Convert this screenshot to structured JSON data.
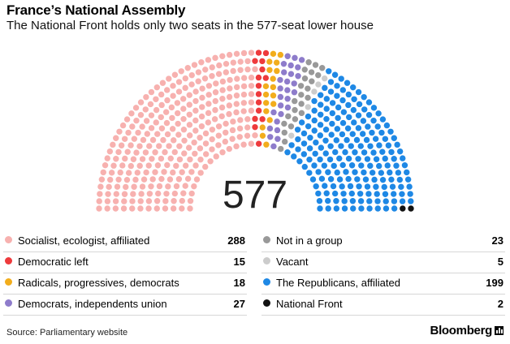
{
  "header": {
    "title": "France’s National Assembly",
    "subtitle": "The National Front holds only two seats in the 577-seat lower house"
  },
  "chart_data": {
    "type": "parliament",
    "total": 577,
    "total_label": "577",
    "groups": [
      {
        "name": "Socialist, ecologist, affiliated",
        "seats": 288,
        "color": "#f7b1af"
      },
      {
        "name": "Democratic left",
        "seats": 15,
        "color": "#ee3a3c"
      },
      {
        "name": "Radicals, progressives, democrats",
        "seats": 18,
        "color": "#f2ad1c"
      },
      {
        "name": "Democrats, independents union",
        "seats": 27,
        "color": "#8e7ccb"
      },
      {
        "name": "Not in a group",
        "seats": 23,
        "color": "#999999"
      },
      {
        "name": "Vacant",
        "seats": 5,
        "color": "#cccccc"
      },
      {
        "name": "The Republicans, affiliated",
        "seats": 199,
        "color": "#1e88e5"
      },
      {
        "name": "National Front",
        "seats": 2,
        "color": "#111111"
      }
    ]
  },
  "legend": [
    {
      "label": "Socialist, ecologist, affiliated",
      "value": "288",
      "color": "#f7b1af"
    },
    {
      "label": "Democratic left",
      "value": "15",
      "color": "#ee3a3c"
    },
    {
      "label": "Radicals, progressives, democrats",
      "value": "18",
      "color": "#f2ad1c"
    },
    {
      "label": "Democrats, independents union",
      "value": "27",
      "color": "#8e7ccb"
    },
    {
      "label": "Not in a group",
      "value": "23",
      "color": "#999999"
    },
    {
      "label": "Vacant",
      "value": "5",
      "color": "#cccccc"
    },
    {
      "label": "The Republicans, affiliated",
      "value": "199",
      "color": "#1e88e5"
    },
    {
      "label": "National Front",
      "value": "2",
      "color": "#111111"
    }
  ],
  "footer": {
    "source": "Source: Parliamentary website",
    "brand": "Bloomberg"
  }
}
